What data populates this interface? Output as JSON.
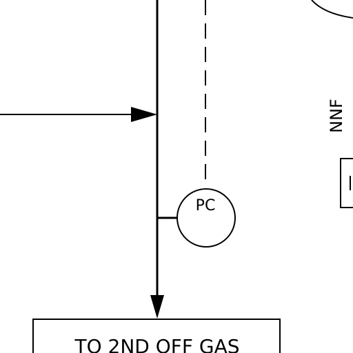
{
  "diagram": {
    "instrument_tag": "PC",
    "side_label": "NNF",
    "destination_box_text": "TO 2ND OFF GAS",
    "line_color": "#000000",
    "background_color": "#ffffff"
  }
}
